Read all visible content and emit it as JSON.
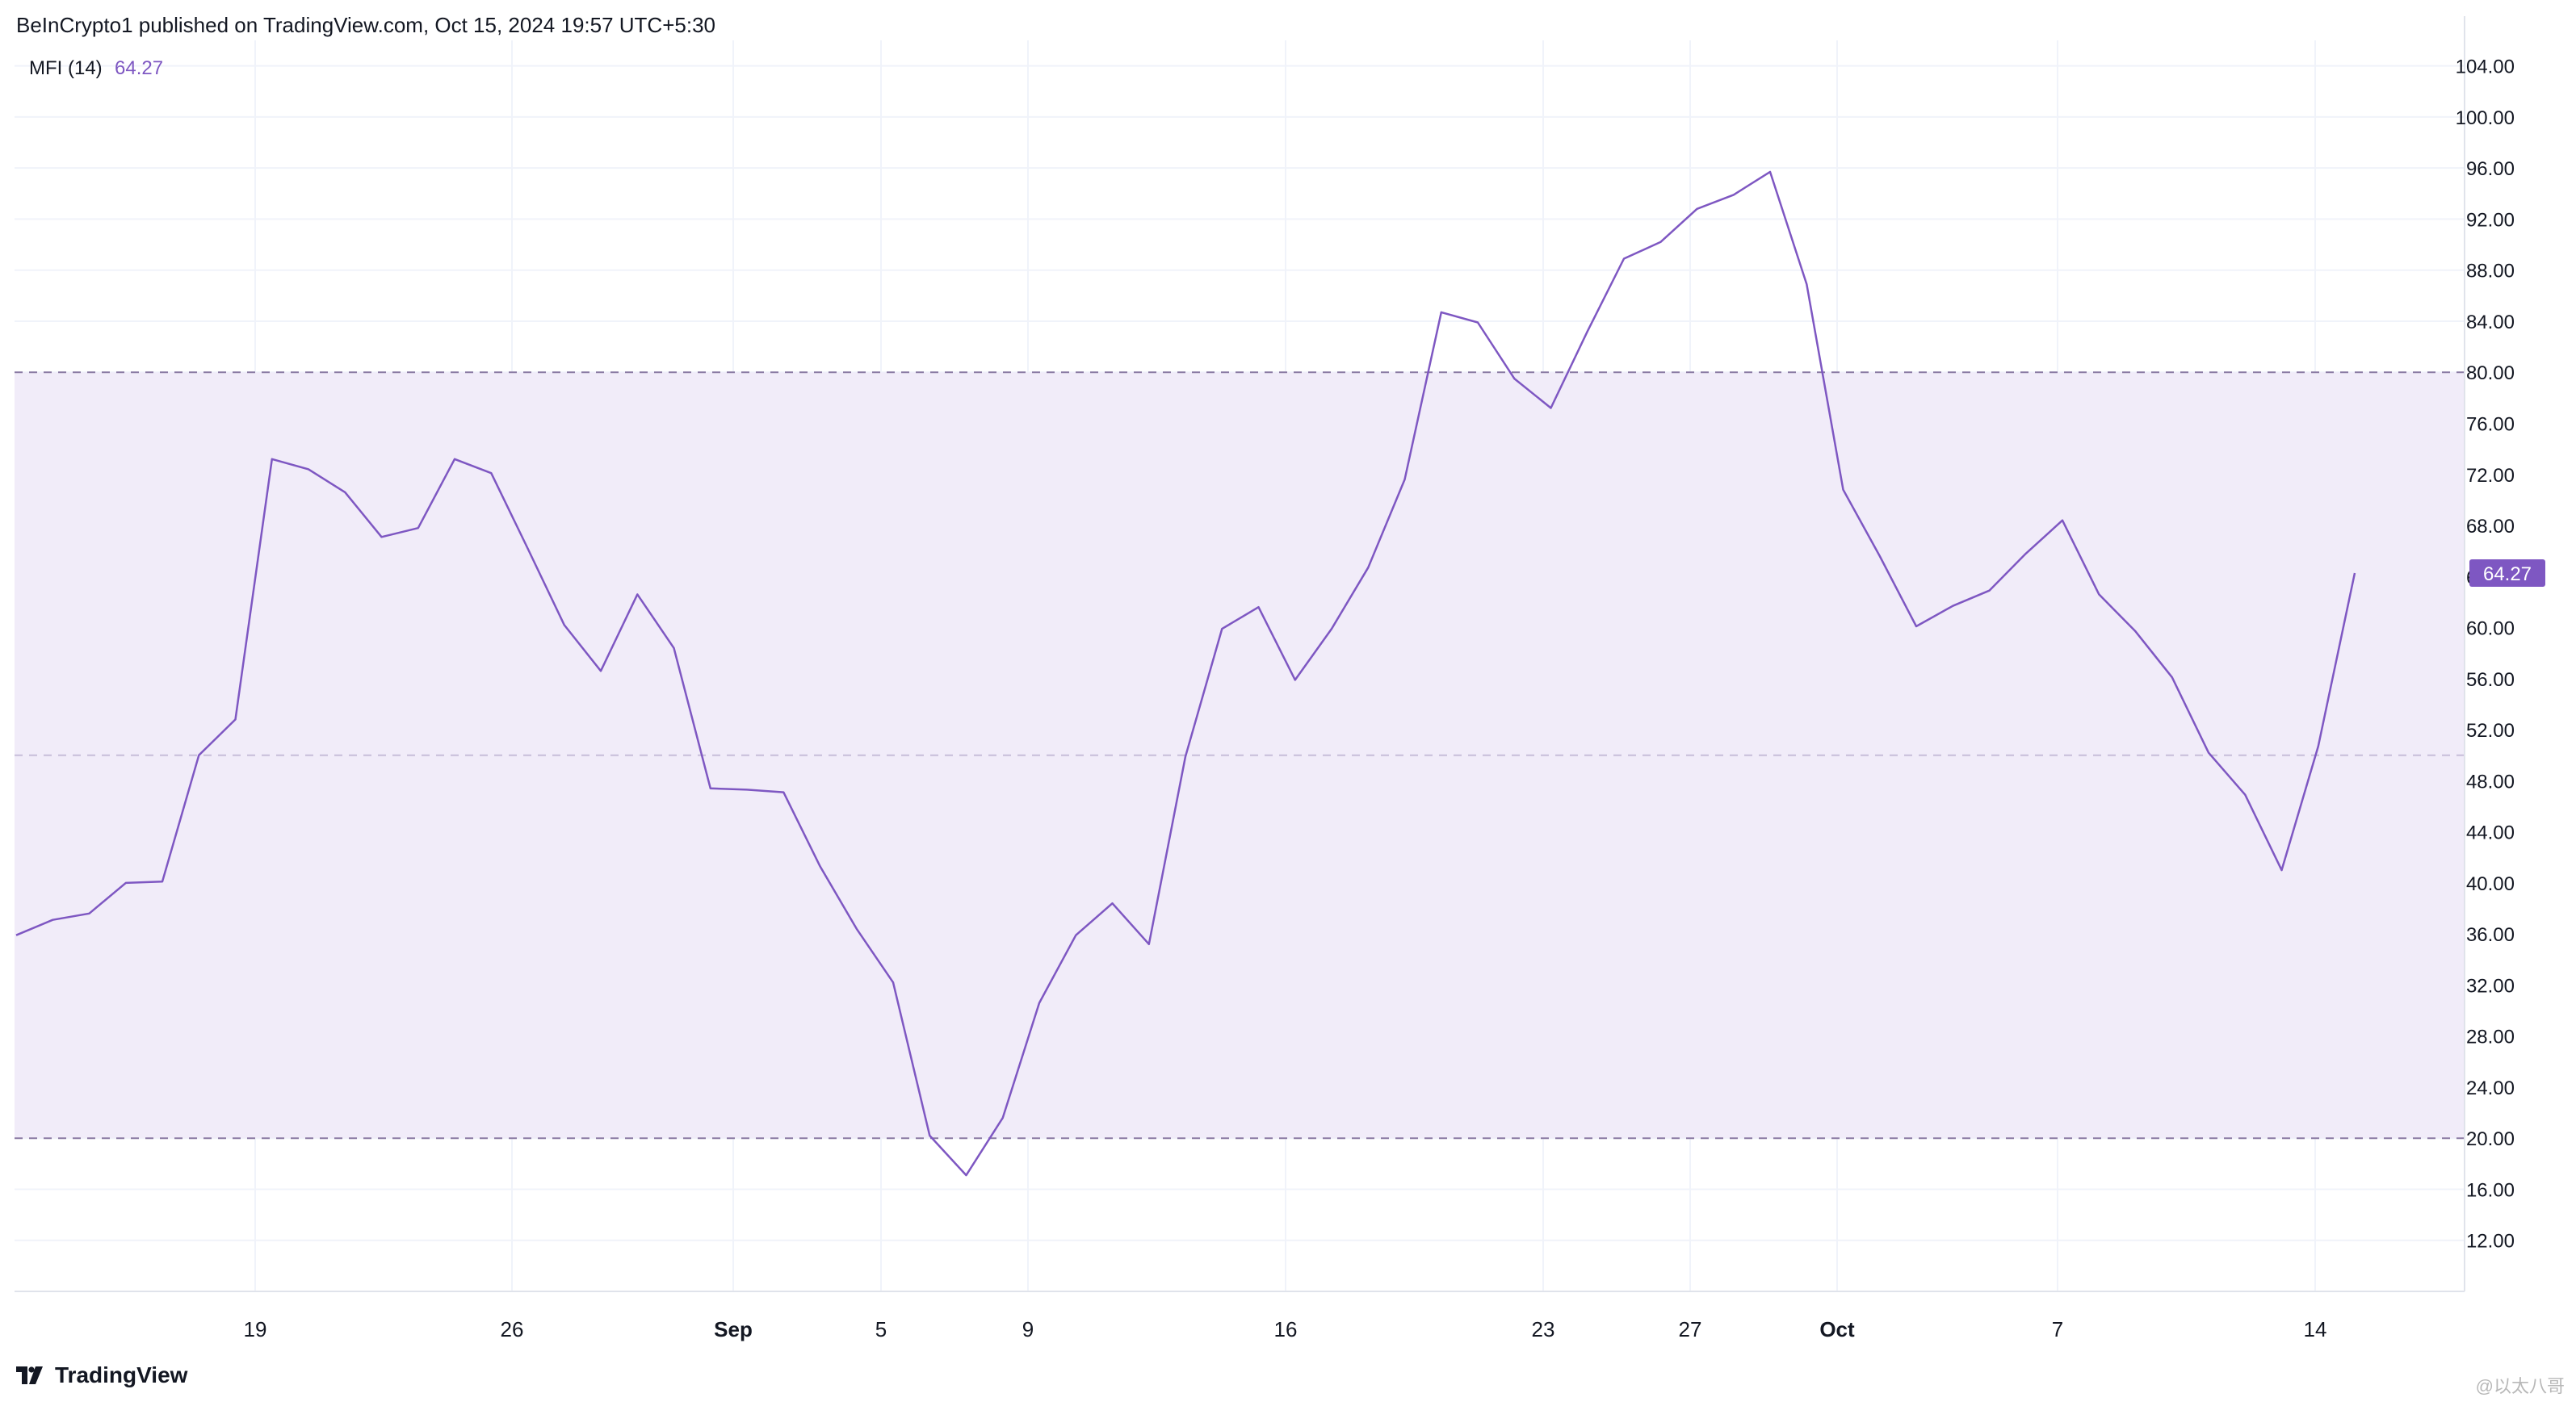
{
  "header": {
    "published": "BeInCrypto1 published on TradingView.com, Oct 15, 2024 19:57 UTC+5:30"
  },
  "brand": {
    "icon": "tradingview-logo-icon",
    "name": "TradingView"
  },
  "watermark": "@以太八哥",
  "colors": {
    "line": "#7e57c2",
    "band_fill": "#f1ecf9",
    "badge": "#7e57c2"
  },
  "chart_data": {
    "type": "line",
    "indicator_label": "MFI (14)",
    "indicator_value": "64.27",
    "current_value_badge": "64.27",
    "x_tick_labels": [
      "19",
      "26",
      "Sep",
      "5",
      "9",
      "16",
      "23",
      "27",
      "Oct",
      "7",
      "14"
    ],
    "y_tick_labels": [
      "12.00",
      "16.00",
      "20.00",
      "24.00",
      "28.00",
      "32.00",
      "36.00",
      "40.00",
      "44.00",
      "48.00",
      "52.00",
      "56.00",
      "60.00",
      "64.00",
      "68.00",
      "72.00",
      "76.00",
      "80.00",
      "84.00",
      "88.00",
      "92.00",
      "96.00",
      "100.00",
      "104.00"
    ],
    "ylim": [
      8,
      106
    ],
    "levels": {
      "upper": 80,
      "middle": 50,
      "lower": 20
    },
    "grid": true,
    "series": [
      {
        "values": [
          35.9,
          37.1,
          37.6,
          40.0,
          40.1,
          50.0,
          52.8,
          73.2,
          72.4,
          70.6,
          67.1,
          67.8,
          73.2,
          72.1,
          66.2,
          60.2,
          56.6,
          62.6,
          58.4,
          47.4,
          47.3,
          47.1,
          41.3,
          36.4,
          32.2,
          20.2,
          17.1,
          21.6,
          30.6,
          35.9,
          38.4,
          35.2,
          49.9,
          59.9,
          61.6,
          55.9,
          59.9,
          64.7,
          71.6,
          84.7,
          83.9,
          79.5,
          77.2,
          83.2,
          88.9,
          90.2,
          92.8,
          93.9,
          95.7,
          86.9,
          70.8,
          65.6,
          60.1,
          61.7,
          62.9,
          65.8,
          68.4,
          62.6,
          59.7,
          56.1,
          50.2,
          46.9,
          41.0,
          50.7,
          64.27
        ]
      }
    ]
  }
}
